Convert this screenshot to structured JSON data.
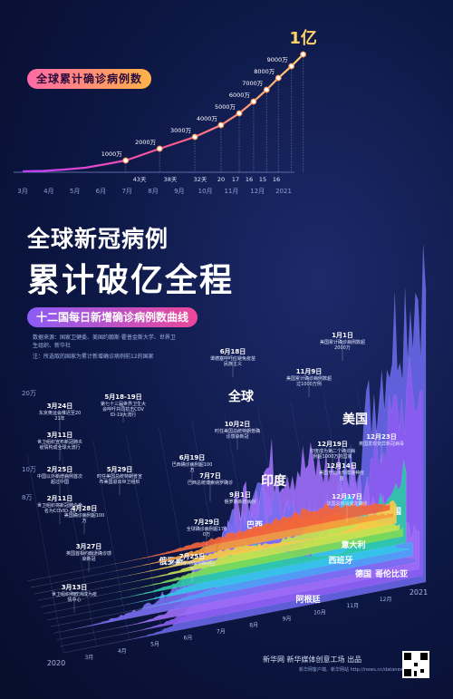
{
  "header": {
    "tag": "全球累计确诊病例数",
    "title_line1": "全球新冠病例",
    "title_line2": "累计破亿全程",
    "subtitle": "十二国每日新增确诊病例数曲线",
    "source": "数据来源：国家卫健委、美国约翰斯·霍普金斯大学、世界卫生组织、新华社",
    "note": "注：所选取的国家为累计新增确诊病例前12的国家"
  },
  "footer": {
    "credit": "新华网 新华媒体创意工场 出品",
    "sub": "新华网客户端、新华网站 http://news.cn/datanews"
  },
  "chart_data": [
    {
      "type": "line",
      "title": "全球累计确诊病例数",
      "x": [
        "3月",
        "4月",
        "5月",
        "6月",
        "7月",
        "8月",
        "9月",
        "10月",
        "11月",
        "12月",
        "2021"
      ],
      "milestones": [
        {
          "label": "1000万",
          "month_index": 3.95
        },
        {
          "label": "2000万",
          "month_index": 5.25
        },
        {
          "label": "3000万",
          "month_index": 6.6
        },
        {
          "label": "4000万",
          "month_index": 7.6
        },
        {
          "label": "5000万",
          "month_index": 8.3
        },
        {
          "label": "6000万",
          "month_index": 8.85
        },
        {
          "label": "7000万",
          "month_index": 9.35
        },
        {
          "label": "8000万",
          "month_index": 9.8
        },
        {
          "label": "9000万",
          "month_index": 10.3
        },
        {
          "label": "1亿",
          "month_index": 10.75
        }
      ],
      "intervals": [
        "43天",
        "38天",
        "32天",
        "20",
        "17",
        "16",
        "15",
        "16"
      ],
      "peak_label": "1亿"
    },
    {
      "type": "area",
      "title": "十二国每日新增确诊病例数曲线",
      "y_ticks": [
        "8万",
        "10万",
        "20万"
      ],
      "x_labels": [
        "2020",
        "3月",
        "4月",
        "5月",
        "6月",
        "7月",
        "8月",
        "9月",
        "10月",
        "11月",
        "12月",
        "2021"
      ],
      "series": [
        {
          "name": "全球",
          "color": "#6f6bf2"
        },
        {
          "name": "美国",
          "color": "#8c5cf0"
        },
        {
          "name": "印度",
          "color": "#9b6bf5"
        },
        {
          "name": "巴西",
          "color": "#7a6cf0"
        },
        {
          "name": "俄罗斯",
          "color": "#4d9ff5"
        },
        {
          "name": "法国",
          "color": "#33c4e8"
        },
        {
          "name": "英国",
          "color": "#2ec6a8"
        },
        {
          "name": "意大利",
          "color": "#7ed957"
        },
        {
          "name": "西班牙",
          "color": "#c9e14f"
        },
        {
          "name": "德国",
          "color": "#f7c948"
        },
        {
          "name": "哥伦比亚",
          "color": "#f59a3a"
        },
        {
          "name": "阿根廷",
          "color": "#f2633a"
        }
      ],
      "annotations": [
        {
          "date": "1月1日",
          "text": "美国累计确诊病例数超2000万"
        },
        {
          "date": "11月9日",
          "text": "美国累计确诊病例数超过1000万例"
        },
        {
          "date": "6月18日",
          "text": "谭德塞呼吁应避免疫苗民族主义"
        },
        {
          "date": "5月18-19日",
          "text": "第七十三届世界卫生大会呼吁共同抗击COVID-19大流行"
        },
        {
          "date": "3月24日",
          "text": "东京奥运会推迟至2021年"
        },
        {
          "date": "3月11日",
          "text": "世卫组织宣布新冠肺炎疫情构成全球大流行"
        },
        {
          "date": "2月25日",
          "text": "中国以外新增病例首次超过中国"
        },
        {
          "date": "2月11日",
          "text": "世卫组织将新冠肺炎命名为COVID-19"
        },
        {
          "date": "10月2日",
          "text": "时任美国总统特朗普确诊感染新冠"
        },
        {
          "date": "12月19日",
          "text": "印度成为第二个确诊病例超1000万的国家"
        },
        {
          "date": "12月23日",
          "text": "英国发现变异新冠病毒"
        },
        {
          "date": "12月14日",
          "text": "美国开始大规模接种疫苗"
        },
        {
          "date": "12月17日",
          "text": "法国总统马克龙确诊"
        },
        {
          "date": "5月29日",
          "text": "时任美国总统特朗普宣布美国退出世卫组织"
        },
        {
          "date": "6月19日",
          "text": "巴西确诊病例超100万"
        },
        {
          "date": "7月7日",
          "text": "巴西总统博索纳罗确诊"
        },
        {
          "date": "9月1日",
          "text": "俄罗斯新增病例"
        },
        {
          "date": "4月28日",
          "text": "美国确诊病例超100万"
        },
        {
          "date": "7月29日",
          "text": "全球确诊病例超1700万"
        },
        {
          "date": "3月27日",
          "text": "英国首相约翰逊确诊感染新冠"
        },
        {
          "date": "7月25日",
          "text": "西班牙新增确诊病例回升"
        },
        {
          "date": "3月13日",
          "text": "世卫组织称欧洲成为疫情中心"
        }
      ]
    }
  ]
}
